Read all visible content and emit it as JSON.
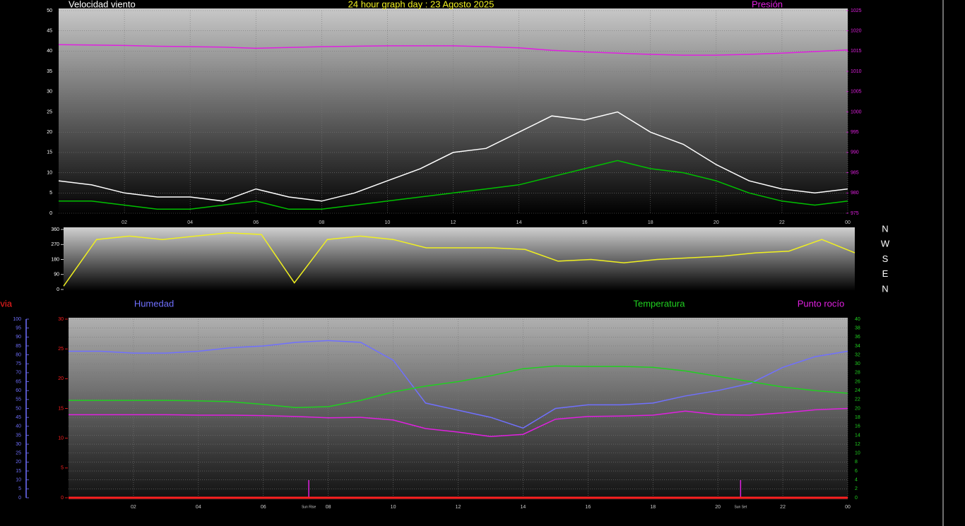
{
  "chart_data": [
    {
      "type": "line",
      "title": "24 hour graph day : 23 Agosto 2025",
      "ylabel": "Velocidad viento",
      "y2label": "Presión",
      "x": [
        0,
        1,
        2,
        3,
        4,
        5,
        6,
        7,
        8,
        9,
        10,
        11,
        12,
        13,
        14,
        15,
        16,
        17,
        18,
        19,
        20,
        21,
        22,
        23,
        24
      ],
      "xlim": [
        0,
        24
      ],
      "xticks": [
        {
          "value": 2,
          "label": "02"
        },
        {
          "value": 4,
          "label": "04"
        },
        {
          "value": 6,
          "label": "06"
        },
        {
          "value": 8,
          "label": "08"
        },
        10,
        12,
        14,
        16,
        18,
        20,
        22,
        {
          "value": 24,
          "label": "00"
        }
      ],
      "ylim": [
        0,
        50
      ],
      "yticks": [
        0,
        5,
        10,
        15,
        20,
        25,
        30,
        35,
        40,
        45,
        50
      ],
      "y2lim": [
        975,
        1025
      ],
      "y2ticks": [
        975,
        980,
        985,
        990,
        995,
        1000,
        1005,
        1010,
        1015,
        1020,
        1025
      ],
      "grid": true,
      "series": [
        {
          "color": "#ffffff",
          "values": [
            8,
            7,
            5,
            4,
            4,
            3,
            6,
            4,
            3,
            5,
            8,
            11,
            15,
            16,
            20,
            24,
            23,
            25,
            20,
            17,
            12,
            8,
            6,
            5,
            6
          ]
        },
        {
          "color": "#00c000",
          "values": [
            3,
            3,
            2,
            1,
            1,
            2,
            3,
            1,
            1,
            2,
            3,
            4,
            5,
            6,
            7,
            9,
            11,
            13,
            11,
            10,
            8,
            5,
            3,
            2,
            3
          ]
        },
        {
          "color": "#e020e0",
          "axis": "y2",
          "values": [
            1016.6,
            1016.5,
            1016.4,
            1016.2,
            1016.1,
            1016,
            1015.7,
            1015.9,
            1016.1,
            1016.2,
            1016.3,
            1016.3,
            1016.3,
            1016.1,
            1015.8,
            1015.2,
            1014.8,
            1014.5,
            1014.2,
            1014,
            1014,
            1014.2,
            1014.5,
            1014.9,
            1015.3
          ]
        }
      ]
    },
    {
      "type": "line",
      "compass": [
        "N",
        "W",
        "S",
        "E",
        "N"
      ],
      "x": [
        0,
        1,
        2,
        3,
        4,
        5,
        6,
        7,
        8,
        9,
        10,
        11,
        12,
        13,
        14,
        15,
        16,
        17,
        18,
        19,
        20,
        21,
        22,
        23,
        24
      ],
      "xlim": [
        0,
        24
      ],
      "ylim": [
        0,
        360
      ],
      "yticks": [
        0,
        90,
        180,
        270,
        360
      ],
      "series": [
        {
          "color": "#f0f020",
          "values": [
            20,
            300,
            320,
            300,
            320,
            340,
            330,
            40,
            300,
            320,
            300,
            250,
            250,
            250,
            240,
            170,
            180,
            160,
            180,
            190,
            200,
            220,
            230,
            300,
            220
          ]
        }
      ]
    },
    {
      "type": "line",
      "x": [
        0,
        1,
        2,
        3,
        4,
        5,
        6,
        7,
        8,
        9,
        10,
        11,
        12,
        13,
        14,
        15,
        16,
        17,
        18,
        19,
        20,
        21,
        22,
        23,
        24
      ],
      "xlim": [
        0,
        24
      ],
      "xticks": [
        {
          "value": 2,
          "label": "02"
        },
        {
          "value": 4,
          "label": "04"
        },
        {
          "value": 6,
          "label": "06"
        },
        {
          "value": 8,
          "label": "08"
        },
        10,
        12,
        14,
        16,
        18,
        20,
        22,
        {
          "value": 24,
          "label": "00"
        }
      ],
      "ylim": [
        0,
        100
      ],
      "yticks": [
        0,
        5,
        10,
        15,
        20,
        25,
        30,
        35,
        40,
        45,
        50,
        55,
        60,
        65,
        70,
        75,
        80,
        85,
        90,
        95,
        100
      ],
      "y2lim": [
        0,
        40
      ],
      "y2ticks": [
        0,
        2,
        4,
        6,
        8,
        10,
        12,
        14,
        16,
        18,
        20,
        22,
        24,
        26,
        28,
        30,
        32,
        34,
        36,
        38,
        40
      ],
      "y3lim": [
        0,
        30
      ],
      "y3ticks": [
        0,
        5,
        10,
        15,
        20,
        25,
        30
      ],
      "grid": true,
      "annotations": [
        {
          "x": 7.4,
          "label": "Sun Rise"
        },
        {
          "x": 20.7,
          "label": "Sun Set"
        }
      ],
      "series": [
        {
          "name": "Lluvia",
          "color": "#ff2020",
          "axis": "y3",
          "values": [
            0,
            0,
            0,
            0,
            0,
            0,
            0,
            0,
            0,
            0,
            0,
            0,
            0,
            0,
            0,
            0,
            0,
            0,
            0,
            0,
            0,
            0,
            0,
            0,
            0
          ]
        },
        {
          "name": "Humedad",
          "color": "#7070ff",
          "values": [
            82,
            82,
            81,
            81,
            82,
            84,
            85,
            87,
            88,
            87,
            77,
            53,
            49,
            45,
            39,
            50,
            52,
            52,
            53,
            57,
            60,
            64,
            73,
            79,
            82
          ]
        },
        {
          "name": "Temperatura",
          "color": "#20d020",
          "axis": "y2",
          "values": [
            21.8,
            21.8,
            21.8,
            21.8,
            21.7,
            21.5,
            20.9,
            20.2,
            20.4,
            21.8,
            23.7,
            25,
            26,
            27.3,
            28.9,
            29.5,
            29.4,
            29.4,
            29.2,
            28.4,
            27.2,
            26,
            24.8,
            24,
            23.4
          ]
        },
        {
          "name": "Punto rocío",
          "color": "#e020e0",
          "axis": "y2",
          "values": [
            18.6,
            18.6,
            18.6,
            18.6,
            18.5,
            18.5,
            18.4,
            18.2,
            17.9,
            18,
            17.4,
            15.5,
            14.7,
            13.7,
            14.2,
            17.6,
            18.2,
            18.3,
            18.5,
            19.4,
            18.6,
            18.5,
            19,
            19.7,
            20
          ]
        }
      ]
    }
  ]
}
